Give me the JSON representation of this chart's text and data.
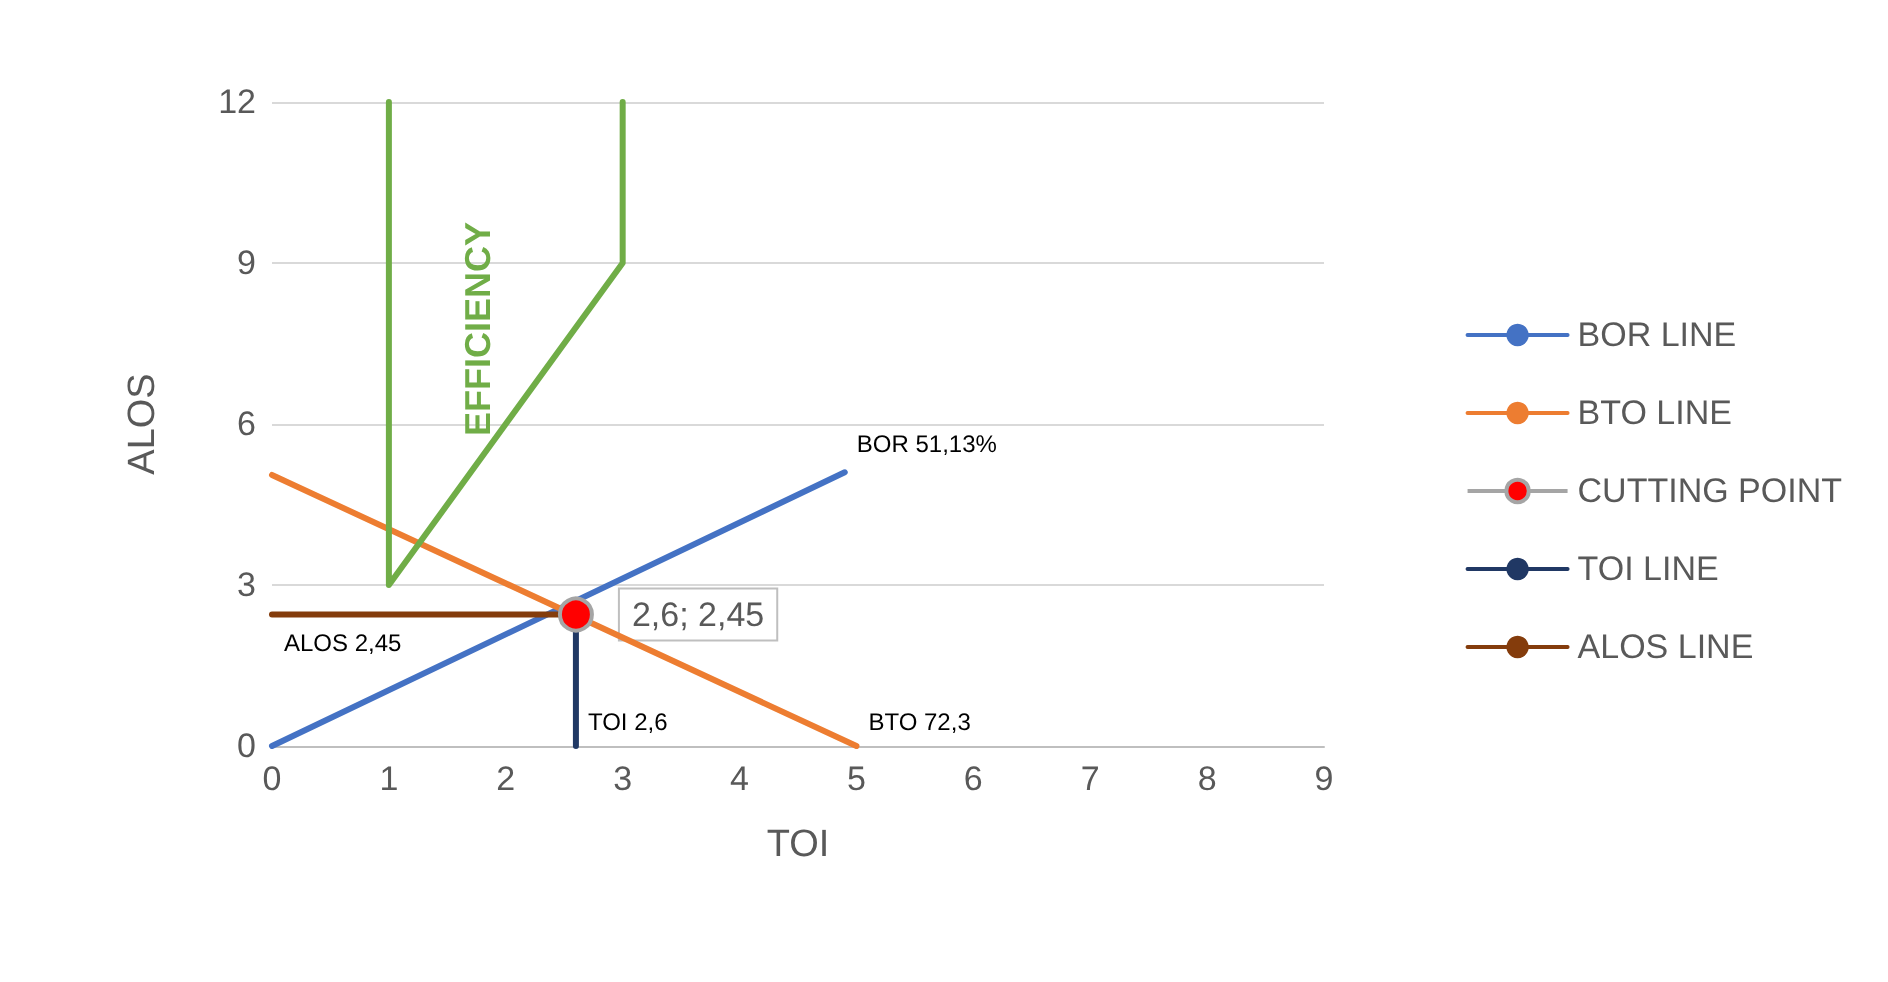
{
  "chart_data": {
    "type": "line",
    "xlabel": "TOI",
    "ylabel": "ALOS",
    "xlim": [
      0,
      9
    ],
    "xticks": [
      0,
      1,
      2,
      3,
      4,
      5,
      6,
      7,
      8,
      9
    ],
    "ylim": [
      0,
      12
    ],
    "yticks": [
      0,
      3,
      6,
      9,
      12
    ],
    "grid": "y",
    "legend": "right",
    "marker": "none",
    "series": [
      {
        "name": "BOR LINE",
        "color": "#4472c4",
        "x": [
          0,
          4.9
        ],
        "values": [
          0,
          5.1
        ]
      },
      {
        "name": "BTO LINE",
        "color": "#ed7d31",
        "x": [
          0,
          5
        ],
        "values": [
          5.05,
          0
        ]
      },
      {
        "name": "CUTTING POINT",
        "color": "#a5a5a5",
        "type": "scatter",
        "marker": "circle",
        "x": [
          2.6
        ],
        "values": [
          2.45
        ]
      },
      {
        "name": "TOI LINE",
        "color": "#203864",
        "x": [
          2.6,
          2.6
        ],
        "values": [
          0,
          2.45
        ]
      },
      {
        "name": "ALOS LINE",
        "color": "#843c0c",
        "x": [
          0,
          2.6
        ],
        "values": [
          2.45,
          2.45
        ]
      },
      {
        "color": "#70ad47",
        "x": [
          1,
          1,
          3,
          3
        ],
        "values": [
          12,
          3,
          9,
          12
        ]
      }
    ],
    "annotations": [
      "EFFICIENCY",
      {
        "text": "BOR 51,13%",
        "x": 4.9,
        "y": 5.1
      },
      {
        "text": "BTO 72,3",
        "x": 5,
        "y": 0
      },
      {
        "text": "ALOS 2,45",
        "x": 0,
        "y": 2.45
      },
      {
        "text": "TOI 2,6",
        "x": 2.6,
        "y": 0
      },
      {
        "text": "2,6; 2,45",
        "x": 2.6,
        "y": 2.45
      }
    ]
  }
}
